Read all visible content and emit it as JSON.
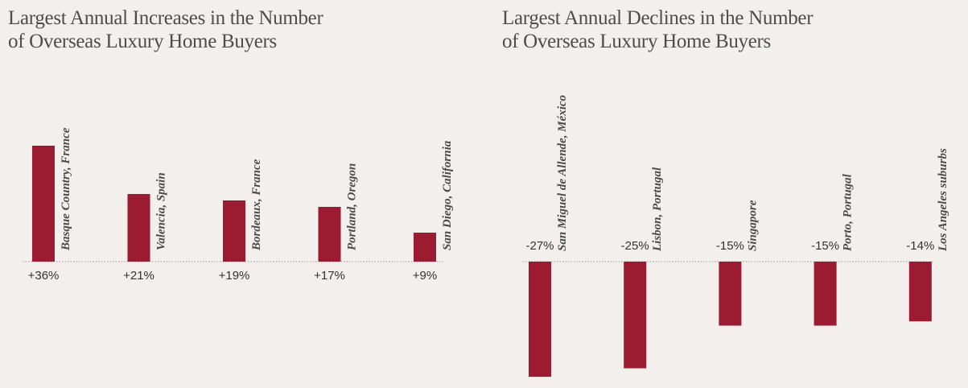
{
  "colors": {
    "bar": "#9b1b30",
    "background": "#f2efec",
    "text": "#333333",
    "baseline": "#999999"
  },
  "chart_data": [
    {
      "type": "bar",
      "title_lines": [
        "Largest Annual Increases in the Number",
        "of Overseas Luxury Home Buyers"
      ],
      "categories": [
        "Basque Country, France",
        "Valencia, Spain",
        "Bordeaux, France",
        "Portland, Oregon",
        "San Diego, California"
      ],
      "values": [
        36,
        21,
        19,
        17,
        9
      ],
      "value_labels": [
        "+36%",
        "+21%",
        "+19%",
        "+17%",
        "+9%"
      ],
      "unit": "%",
      "ylim": [
        0,
        40
      ],
      "grid": false
    },
    {
      "type": "bar",
      "title_lines": [
        "Largest Annual Declines in the Number",
        "of Overseas Luxury Home Buyers"
      ],
      "categories": [
        "San Miguel de Allende, México",
        "Lisbon, Portugal",
        "Singapore",
        "Porto, Portugal",
        "Los Angeles suburbs"
      ],
      "values": [
        -27,
        -25,
        -15,
        -15,
        -14
      ],
      "value_labels": [
        "-27%",
        "-25%",
        "-15%",
        "-15%",
        "-14%"
      ],
      "unit": "%",
      "ylim": [
        -28,
        0
      ],
      "grid": false
    }
  ]
}
